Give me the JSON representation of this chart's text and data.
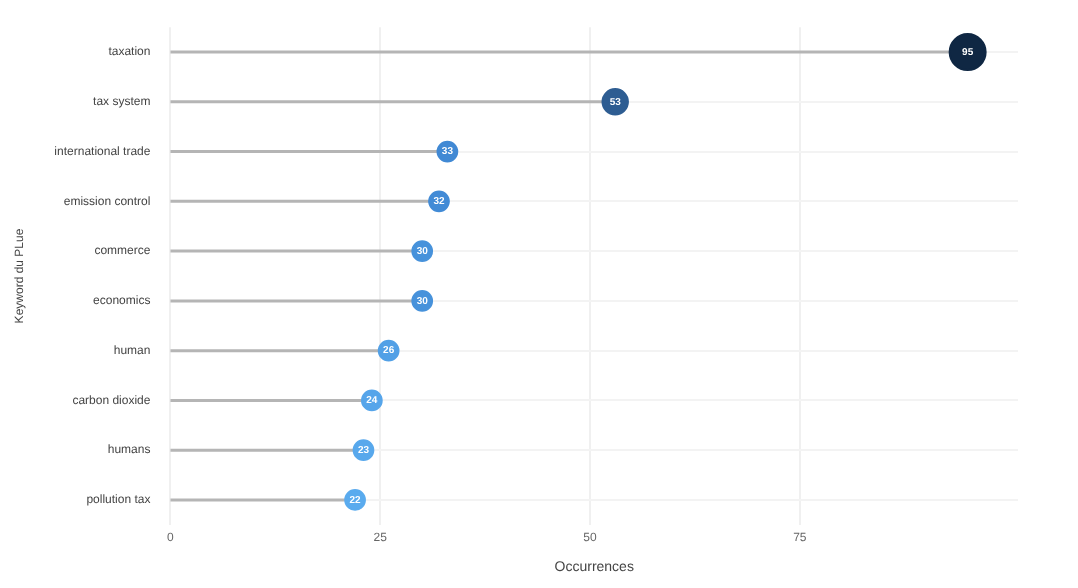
{
  "chart_data": {
    "type": "lollipop",
    "orientation": "horizontal",
    "xlabel": "Occurrences",
    "ylabel": "Keyword du PLue",
    "categories": [
      "taxation",
      "tax system",
      "international trade",
      "emission control",
      "commerce",
      "economics",
      "human",
      "carbon dioxide",
      "humans",
      "pollution tax"
    ],
    "values": [
      95,
      53,
      33,
      32,
      30,
      30,
      26,
      24,
      23,
      22
    ],
    "colors": [
      "#0f2743",
      "#2e5d92",
      "#4189d4",
      "#428bd6",
      "#4792db",
      "#4792db",
      "#52a0e6",
      "#56a5ea",
      "#58a8ec",
      "#5aabee"
    ],
    "sizes": [
      1,
      0.5,
      0.3,
      0.3,
      0.3,
      0.3,
      0.3,
      0.3,
      0.3,
      0.3
    ],
    "data_labels": true,
    "xlim": [
      0,
      101
    ],
    "xticks": [
      0,
      25,
      50,
      75
    ],
    "grid": true,
    "legend": false
  }
}
